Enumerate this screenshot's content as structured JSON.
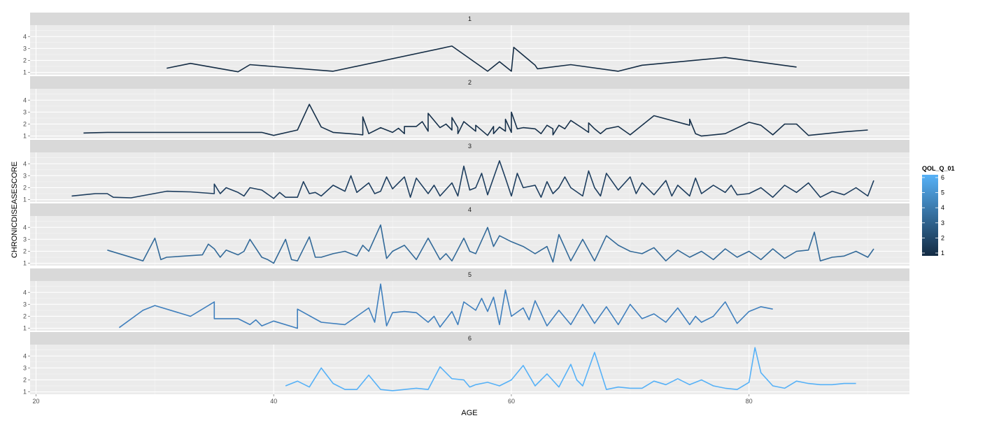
{
  "chart_data": {
    "type": "line",
    "xlabel": "AGE",
    "ylabel": "CHRONICDISEASESCORE",
    "xlim": [
      19.5,
      93.5
    ],
    "ylim": [
      0.8,
      4.95
    ],
    "x_ticks": [
      20,
      40,
      60,
      80
    ],
    "x_tick_labels": [
      "20",
      "40",
      "60",
      "80"
    ],
    "y_ticks": [
      1,
      2,
      3,
      4
    ],
    "y_tick_labels": [
      "1",
      "2",
      "3",
      "4"
    ],
    "grid": true,
    "facet_by": "QOL_Q_01",
    "facets": [
      {
        "label": "1",
        "color": "#142c44",
        "x": [
          31,
          33,
          37,
          38,
          45,
          55,
          58,
          59,
          60,
          60.2,
          62,
          62.2,
          65,
          69,
          71,
          78,
          84
        ],
        "y": [
          1.35,
          1.75,
          1.05,
          1.65,
          1.1,
          3.2,
          1.1,
          1.9,
          1.1,
          3.1,
          1.6,
          1.3,
          1.65,
          1.1,
          1.6,
          2.25,
          1.45
        ]
      },
      {
        "label": "2",
        "color": "#16304a",
        "x": [
          24,
          26,
          33,
          36,
          39,
          40,
          42,
          43,
          44,
          45,
          47,
          47.5,
          47.5,
          48,
          49,
          50,
          50.5,
          51,
          51,
          52,
          52.5,
          53,
          53,
          54,
          54.5,
          55,
          55,
          55.5,
          55.5,
          56,
          57,
          57,
          58,
          58.5,
          58.5,
          59,
          59.5,
          59.5,
          60,
          60,
          60.5,
          61,
          62,
          62.5,
          63,
          63.5,
          63.5,
          64,
          64.5,
          65,
          66,
          66.5,
          66.5,
          67,
          67.5,
          68,
          69,
          70,
          72,
          75,
          75,
          75.5,
          76,
          78,
          80,
          81,
          82,
          83,
          84,
          85,
          88,
          90
        ],
        "y": [
          1.25,
          1.3,
          1.3,
          1.3,
          1.3,
          1.05,
          1.5,
          3.65,
          1.75,
          1.3,
          1.15,
          1.1,
          2.6,
          1.2,
          1.7,
          1.3,
          1.65,
          1.2,
          1.8,
          1.8,
          2.2,
          1.4,
          2.9,
          1.7,
          2.0,
          1.5,
          2.55,
          1.7,
          1.2,
          2.2,
          1.4,
          1.9,
          1.05,
          1.8,
          1.2,
          1.75,
          1.4,
          2.4,
          1.3,
          3.0,
          1.6,
          1.7,
          1.6,
          1.2,
          1.9,
          1.6,
          1.1,
          1.9,
          1.6,
          2.3,
          1.65,
          1.3,
          2.1,
          1.6,
          1.2,
          1.6,
          1.8,
          1.1,
          2.7,
          1.9,
          2.4,
          1.2,
          1.0,
          1.2,
          2.15,
          1.9,
          1.1,
          2.0,
          2.0,
          1.05,
          1.35,
          1.5
        ]
      },
      {
        "label": "3",
        "color": "#1d3d5e",
        "x": [
          23,
          25,
          26,
          26.5,
          28,
          31,
          33,
          35,
          35,
          35.5,
          36,
          37,
          37.5,
          38,
          39,
          40,
          40.5,
          41,
          42,
          42.5,
          43,
          43.5,
          44,
          45,
          46,
          46.5,
          47,
          48,
          48.5,
          49,
          49.5,
          50,
          51,
          51.5,
          52,
          53,
          53.5,
          54,
          55,
          55.5,
          56,
          56.5,
          57,
          57.5,
          58,
          59,
          59.5,
          60,
          60.5,
          61,
          62,
          62.5,
          63,
          63.5,
          64,
          64.5,
          65,
          66,
          66.5,
          67,
          67.5,
          68,
          69,
          70,
          70.5,
          71,
          72,
          73,
          73.5,
          74,
          75,
          75.5,
          76,
          77,
          78,
          78.5,
          79,
          80,
          81,
          82,
          83,
          84,
          85,
          86,
          87,
          88,
          89,
          90,
          90.5
        ],
        "y": [
          1.3,
          1.5,
          1.5,
          1.2,
          1.15,
          1.7,
          1.65,
          1.5,
          2.3,
          1.5,
          2.0,
          1.6,
          1.3,
          2.0,
          1.8,
          1.1,
          1.6,
          1.2,
          1.2,
          2.5,
          1.5,
          1.6,
          1.3,
          2.2,
          1.7,
          3.0,
          1.6,
          2.4,
          1.5,
          1.7,
          2.9,
          1.9,
          2.9,
          1.2,
          2.8,
          1.5,
          2.2,
          1.3,
          2.4,
          1.3,
          3.8,
          1.8,
          2.0,
          3.2,
          1.4,
          4.25,
          2.8,
          1.3,
          3.2,
          2.0,
          2.2,
          1.2,
          2.5,
          1.5,
          2.0,
          2.9,
          2.0,
          1.3,
          3.4,
          2.0,
          1.3,
          3.2,
          1.8,
          2.9,
          1.5,
          2.4,
          1.4,
          2.6,
          1.3,
          2.2,
          1.3,
          2.8,
          1.5,
          2.2,
          1.6,
          2.2,
          1.4,
          1.5,
          2.0,
          1.2,
          2.2,
          1.6,
          2.4,
          1.2,
          1.7,
          1.4,
          2.0,
          1.3,
          2.6
        ]
      },
      {
        "label": "4",
        "color": "#336a99",
        "x": [
          26,
          29,
          30,
          30.5,
          31,
          34,
          34.5,
          35,
          35.5,
          36,
          37,
          37.5,
          38,
          39,
          39.5,
          40,
          41,
          41.5,
          42,
          43,
          43.5,
          44,
          45,
          46,
          47,
          47.5,
          48,
          49,
          49.5,
          50,
          51,
          52,
          53,
          54,
          54.5,
          55,
          56,
          56.5,
          57,
          58,
          58.5,
          59,
          60,
          61,
          62,
          63,
          63.5,
          64,
          65,
          66,
          67,
          68,
          69,
          70,
          71,
          72,
          73,
          74,
          75,
          76,
          77,
          78,
          79,
          80,
          81,
          82,
          83,
          84,
          85,
          85.5,
          86,
          87,
          88,
          89,
          90,
          90.5
        ],
        "y": [
          2.1,
          1.2,
          3.1,
          1.3,
          1.5,
          1.7,
          2.6,
          2.2,
          1.5,
          2.1,
          1.7,
          2.0,
          3.0,
          1.5,
          1.3,
          1.0,
          3.0,
          1.3,
          1.2,
          3.2,
          1.5,
          1.5,
          1.8,
          2.0,
          1.6,
          2.5,
          2.0,
          4.2,
          1.4,
          2.0,
          2.5,
          1.3,
          3.1,
          1.3,
          1.8,
          1.2,
          3.1,
          2.0,
          1.8,
          4.0,
          2.4,
          3.3,
          2.8,
          2.4,
          1.8,
          2.4,
          1.1,
          3.4,
          1.2,
          3.0,
          1.2,
          3.3,
          2.5,
          2.0,
          1.8,
          2.3,
          1.2,
          2.1,
          1.5,
          2.0,
          1.3,
          2.2,
          1.5,
          2.0,
          1.3,
          2.2,
          1.4,
          2.0,
          2.1,
          3.6,
          1.2,
          1.5,
          1.6,
          2.0,
          1.5,
          2.2
        ]
      },
      {
        "label": "5",
        "color": "#3f7fbd",
        "x": [
          27,
          29,
          30,
          33,
          35,
          35,
          35.5,
          37,
          38,
          38.5,
          39,
          40,
          42,
          42,
          44,
          46,
          48,
          48.5,
          49,
          49.5,
          50,
          51,
          52,
          53,
          53.5,
          54,
          55,
          55.5,
          56,
          57,
          57.5,
          58,
          58.5,
          59,
          59.5,
          60,
          61,
          61.5,
          62,
          63,
          64,
          65,
          66,
          67,
          68,
          69,
          70,
          71,
          72,
          73,
          74,
          75,
          75.5,
          76,
          77,
          78,
          79,
          80,
          81,
          82
        ],
        "y": [
          1.05,
          2.5,
          2.9,
          2.0,
          3.2,
          1.8,
          1.8,
          1.8,
          1.3,
          1.7,
          1.2,
          1.6,
          1.0,
          2.6,
          1.5,
          1.3,
          2.7,
          1.5,
          4.7,
          1.2,
          2.3,
          2.4,
          2.3,
          1.5,
          2.0,
          1.1,
          2.4,
          1.3,
          3.2,
          2.5,
          3.5,
          2.4,
          3.6,
          1.3,
          4.2,
          2.0,
          2.7,
          1.7,
          3.3,
          1.2,
          2.5,
          1.3,
          3.0,
          1.4,
          2.8,
          1.3,
          3.0,
          1.8,
          2.2,
          1.5,
          2.7,
          1.3,
          2.0,
          1.5,
          2.0,
          3.2,
          1.4,
          2.4,
          2.8,
          2.6
        ]
      },
      {
        "label": "6",
        "color": "#56b1f7",
        "x": [
          41,
          42,
          43,
          44,
          45,
          46,
          47,
          48,
          49,
          50,
          51,
          52,
          53,
          54,
          55,
          56,
          56.5,
          57,
          58,
          59,
          60,
          61,
          62,
          63,
          64,
          65,
          65.5,
          66,
          67,
          68,
          69,
          70,
          71,
          72,
          73,
          74,
          75,
          76,
          77,
          78,
          79,
          80,
          80.5,
          81,
          82,
          83,
          84,
          85,
          86,
          87,
          88,
          89
        ],
        "y": [
          1.5,
          1.9,
          1.4,
          3.0,
          1.7,
          1.2,
          1.2,
          2.4,
          1.2,
          1.1,
          1.2,
          1.3,
          1.2,
          3.1,
          2.1,
          2.0,
          1.4,
          1.6,
          1.8,
          1.5,
          2.0,
          3.2,
          1.5,
          2.5,
          1.4,
          3.3,
          2.0,
          1.5,
          4.3,
          1.2,
          1.4,
          1.3,
          1.3,
          1.9,
          1.6,
          2.1,
          1.6,
          2.0,
          1.5,
          1.3,
          1.2,
          1.8,
          4.7,
          2.6,
          1.5,
          1.3,
          1.9,
          1.7,
          1.6,
          1.6,
          1.7,
          1.7
        ]
      }
    ],
    "legend": {
      "title": "QOL_Q_01",
      "position": "right",
      "type": "colorbar",
      "ticks": [
        "1",
        "2",
        "3",
        "4",
        "5",
        "6"
      ],
      "low_color": "#132b43",
      "high_color": "#56b1f7"
    }
  }
}
